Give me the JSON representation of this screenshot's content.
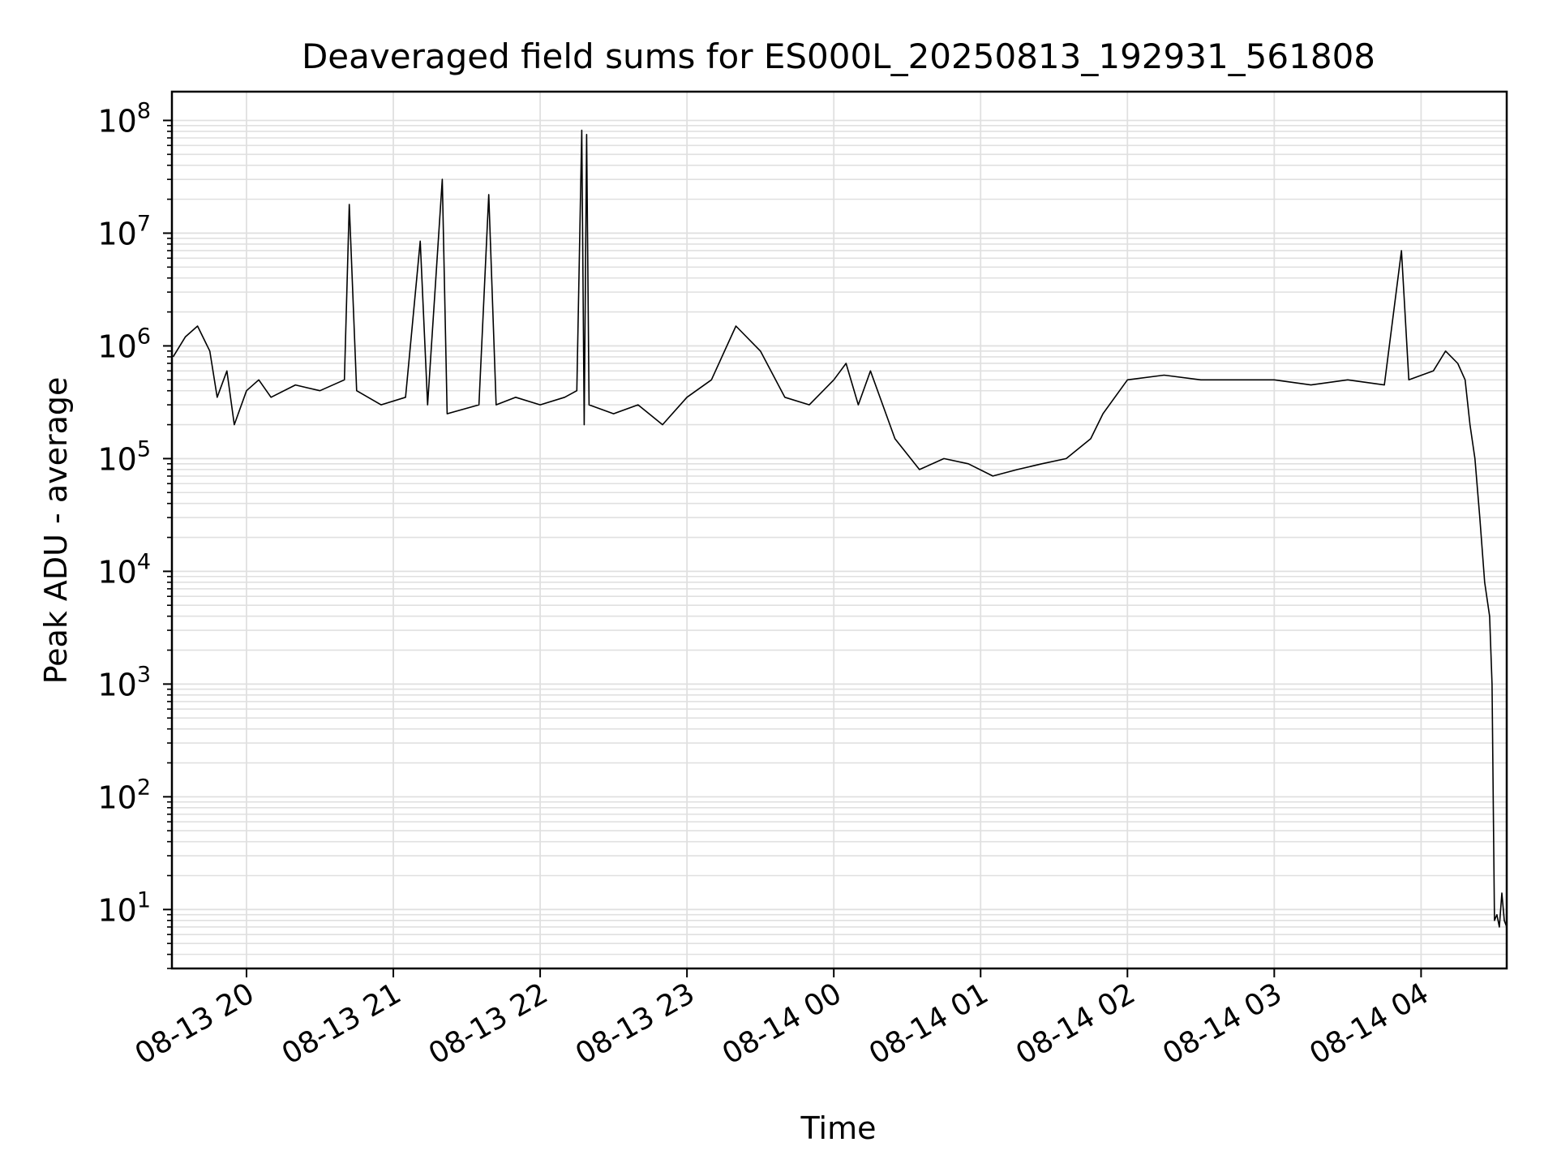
{
  "chart_data": {
    "type": "line",
    "title": "Deaveraged field sums for ES000L_20250813_192931_561808",
    "xlabel": "Time",
    "ylabel": "Peak ADU - average",
    "yscale": "log",
    "ylim": [
      3,
      180000000
    ],
    "xlim": [
      "2025-08-13 19:29:31",
      "2025-08-14 04:35:00"
    ],
    "x_ticks": [
      "08-13 20",
      "08-13 21",
      "08-13 22",
      "08-13 23",
      "08-14 00",
      "08-14 01",
      "08-14 02",
      "08-14 03",
      "08-14 04"
    ],
    "x_tick_times": [
      "2025-08-13 20:00",
      "2025-08-13 21:00",
      "2025-08-13 22:00",
      "2025-08-13 23:00",
      "2025-08-14 00:00",
      "2025-08-14 01:00",
      "2025-08-14 02:00",
      "2025-08-14 03:00",
      "2025-08-14 04:00"
    ],
    "y_ticks": [
      {
        "base": "10",
        "exp": "1",
        "value": 10
      },
      {
        "base": "10",
        "exp": "2",
        "value": 100
      },
      {
        "base": "10",
        "exp": "3",
        "value": 1000
      },
      {
        "base": "10",
        "exp": "4",
        "value": 10000
      },
      {
        "base": "10",
        "exp": "5",
        "value": 100000
      },
      {
        "base": "10",
        "exp": "6",
        "value": 1000000
      },
      {
        "base": "10",
        "exp": "7",
        "value": 10000000
      },
      {
        "base": "10",
        "exp": "8",
        "value": 100000000
      }
    ],
    "grid": true,
    "line_color": "#000000",
    "grid_color": "#e0e0e0",
    "series": [
      {
        "points": [
          [
            "2025-08-13 19:30",
            800000
          ],
          [
            "2025-08-13 19:35",
            1200000
          ],
          [
            "2025-08-13 19:40",
            1500000
          ],
          [
            "2025-08-13 19:45",
            900000
          ],
          [
            "2025-08-13 19:48",
            350000
          ],
          [
            "2025-08-13 19:52",
            600000
          ],
          [
            "2025-08-13 19:55",
            200000
          ],
          [
            "2025-08-13 20:00",
            400000
          ],
          [
            "2025-08-13 20:05",
            500000
          ],
          [
            "2025-08-13 20:10",
            350000
          ],
          [
            "2025-08-13 20:20",
            450000
          ],
          [
            "2025-08-13 20:30",
            400000
          ],
          [
            "2025-08-13 20:40",
            500000
          ],
          [
            "2025-08-13 20:42",
            18000000
          ],
          [
            "2025-08-13 20:45",
            400000
          ],
          [
            "2025-08-13 20:55",
            300000
          ],
          [
            "2025-08-13 21:05",
            350000
          ],
          [
            "2025-08-13 21:11",
            8500000
          ],
          [
            "2025-08-13 21:14",
            300000
          ],
          [
            "2025-08-13 21:20",
            30000000
          ],
          [
            "2025-08-13 21:22",
            250000
          ],
          [
            "2025-08-13 21:35",
            300000
          ],
          [
            "2025-08-13 21:39",
            22000000
          ],
          [
            "2025-08-13 21:42",
            300000
          ],
          [
            "2025-08-13 21:50",
            350000
          ],
          [
            "2025-08-13 22:00",
            300000
          ],
          [
            "2025-08-13 22:10",
            350000
          ],
          [
            "2025-08-13 22:15",
            400000
          ],
          [
            "2025-08-13 22:17",
            82000000
          ],
          [
            "2025-08-13 22:18",
            200000
          ],
          [
            "2025-08-13 22:19",
            75000000
          ],
          [
            "2025-08-13 22:20",
            300000
          ],
          [
            "2025-08-13 22:30",
            250000
          ],
          [
            "2025-08-13 22:40",
            300000
          ],
          [
            "2025-08-13 22:50",
            200000
          ],
          [
            "2025-08-13 23:00",
            350000
          ],
          [
            "2025-08-13 23:10",
            500000
          ],
          [
            "2025-08-13 23:20",
            1500000
          ],
          [
            "2025-08-13 23:30",
            900000
          ],
          [
            "2025-08-13 23:40",
            350000
          ],
          [
            "2025-08-13 23:50",
            300000
          ],
          [
            "2025-08-14 00:00",
            500000
          ],
          [
            "2025-08-14 00:05",
            700000
          ],
          [
            "2025-08-14 00:10",
            300000
          ],
          [
            "2025-08-14 00:15",
            600000
          ],
          [
            "2025-08-14 00:25",
            150000
          ],
          [
            "2025-08-14 00:35",
            80000
          ],
          [
            "2025-08-14 00:45",
            100000
          ],
          [
            "2025-08-14 00:55",
            90000
          ],
          [
            "2025-08-14 01:05",
            70000
          ],
          [
            "2025-08-14 01:15",
            80000
          ],
          [
            "2025-08-14 01:25",
            90000
          ],
          [
            "2025-08-14 01:35",
            100000
          ],
          [
            "2025-08-14 01:45",
            150000
          ],
          [
            "2025-08-14 01:50",
            250000
          ],
          [
            "2025-08-14 02:00",
            500000
          ],
          [
            "2025-08-14 02:15",
            550000
          ],
          [
            "2025-08-14 02:30",
            500000
          ],
          [
            "2025-08-14 02:45",
            500000
          ],
          [
            "2025-08-14 03:00",
            500000
          ],
          [
            "2025-08-14 03:15",
            450000
          ],
          [
            "2025-08-14 03:30",
            500000
          ],
          [
            "2025-08-14 03:45",
            450000
          ],
          [
            "2025-08-14 03:52",
            7000000
          ],
          [
            "2025-08-14 03:55",
            500000
          ],
          [
            "2025-08-14 04:05",
            600000
          ],
          [
            "2025-08-14 04:10",
            900000
          ],
          [
            "2025-08-14 04:15",
            700000
          ],
          [
            "2025-08-14 04:18",
            500000
          ],
          [
            "2025-08-14 04:20",
            200000
          ],
          [
            "2025-08-14 04:22",
            100000
          ],
          [
            "2025-08-14 04:24",
            30000
          ],
          [
            "2025-08-14 04:26",
            8000
          ],
          [
            "2025-08-14 04:28",
            4000
          ],
          [
            "2025-08-14 04:29",
            1000
          ],
          [
            "2025-08-14 04:30",
            8
          ],
          [
            "2025-08-14 04:31",
            9
          ],
          [
            "2025-08-14 04:32",
            7
          ],
          [
            "2025-08-14 04:33",
            14
          ],
          [
            "2025-08-14 04:34",
            8
          ],
          [
            "2025-08-14 04:35",
            7
          ]
        ]
      }
    ]
  }
}
